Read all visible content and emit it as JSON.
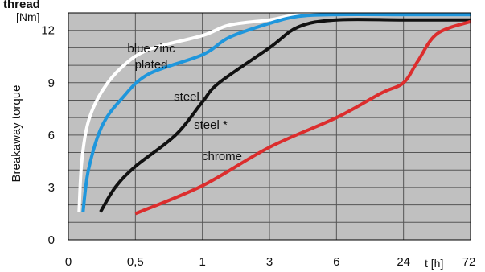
{
  "header_fragment": "thread",
  "chart_data": {
    "type": "line",
    "title": "",
    "ylabel": "Breakaway  torque",
    "y_unit": "[Nm]",
    "xlabel": "t [h]",
    "ylim": [
      0,
      13
    ],
    "yticks": [
      0,
      3,
      6,
      9,
      12
    ],
    "x_tick_labels": [
      "0",
      "0,5",
      "1",
      "3",
      "6",
      "24",
      "72"
    ],
    "x_tick_values": [
      0,
      0.5,
      1,
      3,
      6,
      24,
      72
    ],
    "grid": true,
    "background_color": "#c0c0c0",
    "series": [
      {
        "name": "blue zinc plated",
        "label_lines": [
          "blue zinc",
          "plated"
        ],
        "color": "#ffffff",
        "points": [
          [
            0.08,
            1.6
          ],
          [
            0.1,
            4.5
          ],
          [
            0.15,
            6.8
          ],
          [
            0.25,
            8.5
          ],
          [
            0.4,
            9.9
          ],
          [
            0.6,
            10.9
          ],
          [
            1,
            11.7
          ],
          [
            1.8,
            12.3
          ],
          [
            3,
            12.6
          ],
          [
            4.3,
            12.9
          ],
          [
            6,
            12.9
          ],
          [
            24,
            12.9
          ],
          [
            72,
            12.9
          ]
        ]
      },
      {
        "name": "steel",
        "label_lines": [
          "steel"
        ],
        "color": "#1e96dc",
        "points": [
          [
            0.11,
            1.6
          ],
          [
            0.15,
            4.0
          ],
          [
            0.25,
            6.5
          ],
          [
            0.4,
            8.1
          ],
          [
            0.6,
            9.5
          ],
          [
            1,
            10.6
          ],
          [
            1.8,
            11.6
          ],
          [
            3,
            12.4
          ],
          [
            4.3,
            12.8
          ],
          [
            6,
            12.9
          ],
          [
            24,
            12.9
          ],
          [
            72,
            12.9
          ]
        ]
      },
      {
        "name": "steel *",
        "label_lines": [
          "steel *"
        ],
        "color": "#111111",
        "points": [
          [
            0.24,
            1.6
          ],
          [
            0.35,
            3.0
          ],
          [
            0.5,
            4.2
          ],
          [
            0.8,
            6.0
          ],
          [
            1,
            7.9
          ],
          [
            1.5,
            9.0
          ],
          [
            3,
            11.0
          ],
          [
            4.3,
            12.2
          ],
          [
            6,
            12.6
          ],
          [
            24,
            12.6
          ],
          [
            72,
            12.6
          ]
        ]
      },
      {
        "name": "chrome",
        "label_lines": [
          "chrome"
        ],
        "color": "#dc2d2d",
        "points": [
          [
            0.5,
            1.5
          ],
          [
            1,
            3.1
          ],
          [
            3,
            5.3
          ],
          [
            6,
            7.0
          ],
          [
            18,
            8.4
          ],
          [
            24,
            9.0
          ],
          [
            34,
            10.2
          ],
          [
            48,
            11.8
          ],
          [
            72,
            12.5
          ]
        ]
      }
    ]
  }
}
